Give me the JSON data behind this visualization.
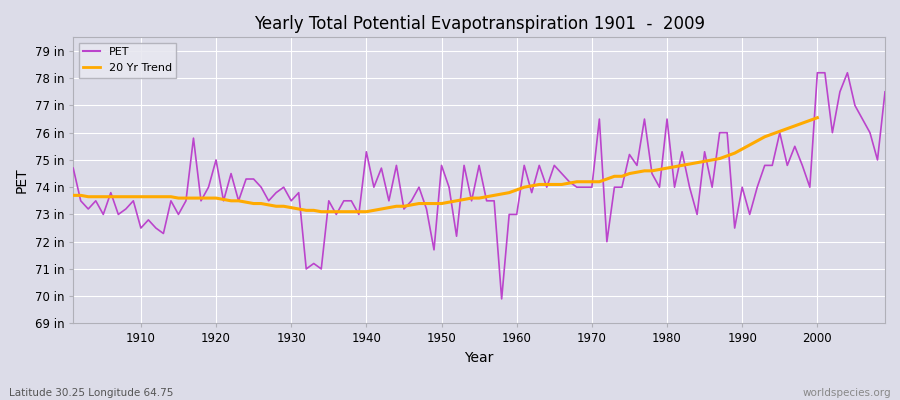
{
  "title": "Yearly Total Potential Evapotranspiration 1901  -  2009",
  "xlabel": "Year",
  "ylabel": "PET",
  "bottom_left_label": "Latitude 30.25 Longitude 64.75",
  "bottom_right_label": "worldspecies.org",
  "pet_color": "#bb44cc",
  "trend_color": "#ffaa00",
  "bg_color": "#dcdce8",
  "ylim": [
    69,
    79.5
  ],
  "yticks": [
    69,
    70,
    71,
    72,
    73,
    74,
    75,
    76,
    77,
    78,
    79
  ],
  "ytick_labels": [
    "69 in",
    "70 in",
    "71 in",
    "72 in",
    "73 in",
    "74 in",
    "75 in",
    "76 in",
    "77 in",
    "78 in",
    "79 in"
  ],
  "years": [
    1901,
    1902,
    1903,
    1904,
    1905,
    1906,
    1907,
    1908,
    1909,
    1910,
    1911,
    1912,
    1913,
    1914,
    1915,
    1916,
    1917,
    1918,
    1919,
    1920,
    1921,
    1922,
    1923,
    1924,
    1925,
    1926,
    1927,
    1928,
    1929,
    1930,
    1931,
    1932,
    1933,
    1934,
    1935,
    1936,
    1937,
    1938,
    1939,
    1940,
    1941,
    1942,
    1943,
    1944,
    1945,
    1946,
    1947,
    1948,
    1949,
    1950,
    1951,
    1952,
    1953,
    1954,
    1955,
    1956,
    1957,
    1958,
    1959,
    1960,
    1961,
    1962,
    1963,
    1964,
    1965,
    1966,
    1967,
    1968,
    1969,
    1970,
    1971,
    1972,
    1973,
    1974,
    1975,
    1976,
    1977,
    1978,
    1979,
    1980,
    1981,
    1982,
    1983,
    1984,
    1985,
    1986,
    1987,
    1988,
    1989,
    1990,
    1991,
    1992,
    1993,
    1994,
    1995,
    1996,
    1997,
    1998,
    1999,
    2000,
    2001,
    2002,
    2003,
    2004,
    2005,
    2006,
    2007,
    2008,
    2009
  ],
  "pet_values": [
    74.7,
    73.5,
    73.2,
    73.5,
    73.0,
    73.8,
    73.0,
    73.2,
    73.5,
    72.5,
    72.8,
    72.5,
    72.3,
    73.5,
    73.0,
    73.5,
    75.8,
    73.5,
    74.0,
    75.0,
    73.5,
    74.5,
    73.5,
    74.3,
    74.3,
    74.0,
    73.5,
    73.8,
    74.0,
    73.5,
    73.8,
    71.0,
    71.2,
    71.0,
    73.5,
    73.0,
    73.5,
    73.5,
    73.0,
    75.3,
    74.0,
    74.7,
    73.5,
    74.8,
    73.2,
    73.5,
    74.0,
    73.2,
    71.7,
    74.8,
    74.0,
    72.2,
    74.8,
    73.5,
    74.8,
    73.5,
    73.5,
    69.9,
    73.0,
    73.0,
    74.8,
    73.8,
    74.8,
    74.0,
    74.8,
    74.5,
    74.2,
    74.0,
    74.0,
    74.0,
    76.5,
    72.0,
    74.0,
    74.0,
    75.2,
    74.8,
    76.5,
    74.5,
    74.0,
    76.5,
    74.0,
    75.3,
    74.0,
    73.0,
    75.3,
    74.0,
    76.0,
    76.0,
    72.5,
    74.0,
    73.0,
    74.0,
    74.8,
    74.8,
    76.0,
    74.8,
    75.5,
    74.8,
    74.0,
    78.2,
    78.2,
    76.0,
    77.5,
    78.2,
    77.0,
    76.5,
    76.0,
    75.0,
    77.5
  ],
  "trend_values": [
    73.7,
    73.7,
    73.65,
    73.65,
    73.65,
    73.65,
    73.65,
    73.65,
    73.65,
    73.65,
    73.65,
    73.65,
    73.65,
    73.65,
    73.6,
    73.6,
    73.6,
    73.6,
    73.6,
    73.6,
    73.55,
    73.5,
    73.5,
    73.45,
    73.4,
    73.4,
    73.35,
    73.3,
    73.3,
    73.25,
    73.2,
    73.15,
    73.15,
    73.1,
    73.1,
    73.1,
    73.1,
    73.1,
    73.1,
    73.1,
    73.15,
    73.2,
    73.25,
    73.3,
    73.3,
    73.35,
    73.4,
    73.4,
    73.4,
    73.4,
    73.45,
    73.5,
    73.55,
    73.6,
    73.6,
    73.65,
    73.7,
    73.75,
    73.8,
    73.9,
    74.0,
    74.05,
    74.1,
    74.1,
    74.1,
    74.1,
    74.15,
    74.2,
    74.2,
    74.2,
    74.2,
    74.3,
    74.4,
    74.4,
    74.5,
    74.55,
    74.6,
    74.6,
    74.65,
    74.7,
    74.75,
    74.8,
    74.85,
    74.9,
    74.95,
    75.0,
    75.05,
    75.15,
    75.25,
    75.4,
    75.55,
    75.7,
    75.85,
    75.95,
    76.05,
    76.15,
    76.25,
    76.35,
    76.45,
    76.55,
    null,
    null,
    null,
    null,
    null,
    null,
    null,
    null,
    null
  ]
}
